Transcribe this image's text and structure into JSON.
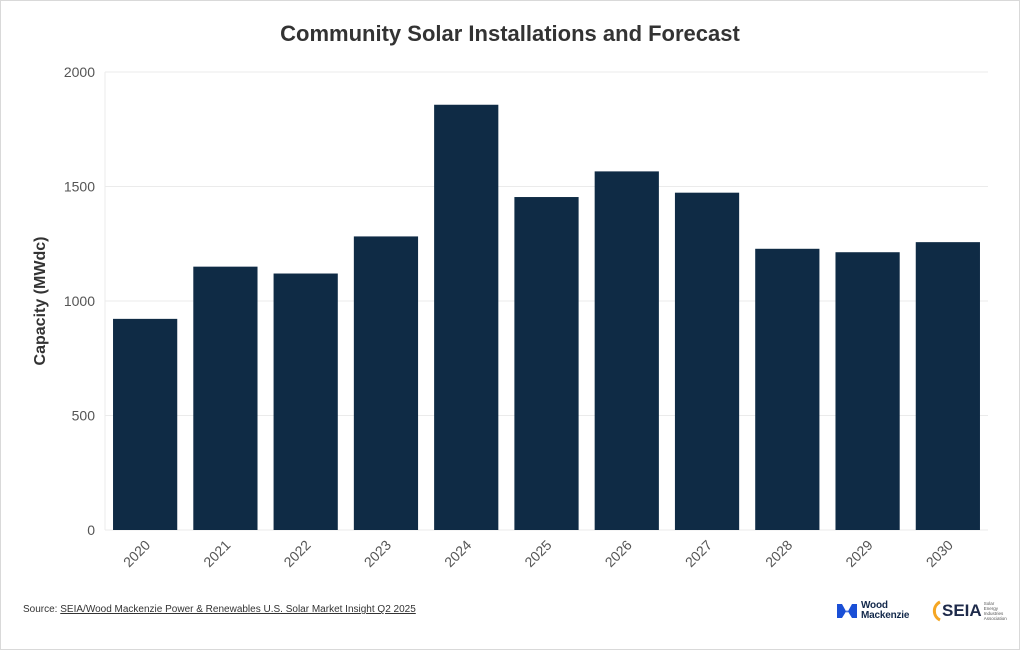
{
  "chart_data": {
    "type": "bar",
    "title": "Community Solar Installations and Forecast",
    "xlabel": "",
    "ylabel": "Capacity (MWdc)",
    "categories": [
      "2020",
      "2021",
      "2022",
      "2023",
      "2024",
      "2025",
      "2026",
      "2027",
      "2028",
      "2029",
      "2030"
    ],
    "values": [
      922,
      1150,
      1120,
      1282,
      1857,
      1454,
      1566,
      1473,
      1228,
      1213,
      1257
    ],
    "ylim": [
      0,
      2000
    ],
    "yticks": [
      0,
      500,
      1000,
      1500,
      2000
    ],
    "grid": true,
    "bar_color": "#0f2b45",
    "grid_color": "#ebebeb"
  },
  "footer": {
    "source_prefix": "Source: ",
    "source_link": "SEIA/Wood Mackenzie Power & Renewables U.S. Solar Market Insight Q2 2025",
    "logo_wm_line1": "Wood",
    "logo_wm_line2": "Mackenzie",
    "logo_seia": "SEIA",
    "logo_seia_sub": "Solar Energy Industries Association"
  }
}
